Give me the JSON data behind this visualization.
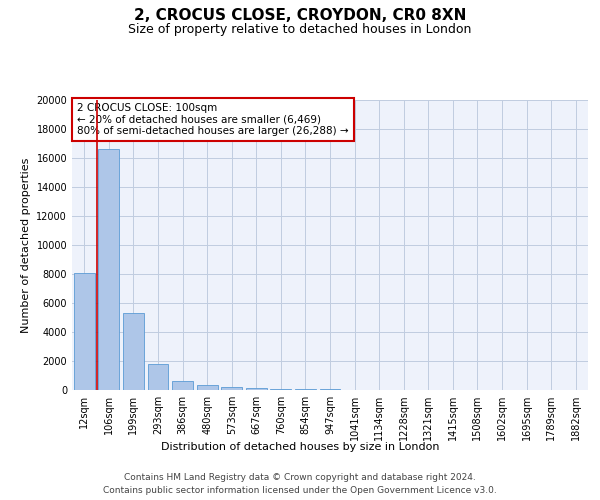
{
  "title": "2, CROCUS CLOSE, CROYDON, CR0 8XN",
  "subtitle": "Size of property relative to detached houses in London",
  "xlabel": "Distribution of detached houses by size in London",
  "ylabel": "Number of detached properties",
  "bar_labels": [
    "12sqm",
    "106sqm",
    "199sqm",
    "293sqm",
    "386sqm",
    "480sqm",
    "573sqm",
    "667sqm",
    "760sqm",
    "854sqm",
    "947sqm",
    "1041sqm",
    "1134sqm",
    "1228sqm",
    "1321sqm",
    "1415sqm",
    "1508sqm",
    "1602sqm",
    "1695sqm",
    "1789sqm",
    "1882sqm"
  ],
  "bar_values": [
    8050,
    16600,
    5300,
    1800,
    620,
    330,
    200,
    120,
    80,
    55,
    40,
    30,
    22,
    18,
    14,
    11,
    9,
    7,
    6,
    5,
    4
  ],
  "bar_color": "#aec6e8",
  "bar_edgecolor": "#5b9bd5",
  "background_color": "#eef2fb",
  "annotation_box_text": "2 CROCUS CLOSE: 100sqm\n← 20% of detached houses are smaller (6,469)\n80% of semi-detached houses are larger (26,288) →",
  "annotation_box_color": "#ffffff",
  "annotation_box_edgecolor": "#cc0000",
  "property_line_color": "#cc0000",
  "footer_line1": "Contains HM Land Registry data © Crown copyright and database right 2024.",
  "footer_line2": "Contains public sector information licensed under the Open Government Licence v3.0.",
  "ylim": [
    0,
    20000
  ],
  "yticks": [
    0,
    2000,
    4000,
    6000,
    8000,
    10000,
    12000,
    14000,
    16000,
    18000,
    20000
  ],
  "grid_color": "#c0cce0",
  "title_fontsize": 11,
  "subtitle_fontsize": 9,
  "axis_label_fontsize": 8,
  "tick_fontsize": 7,
  "annotation_fontsize": 7.5,
  "footer_fontsize": 6.5
}
